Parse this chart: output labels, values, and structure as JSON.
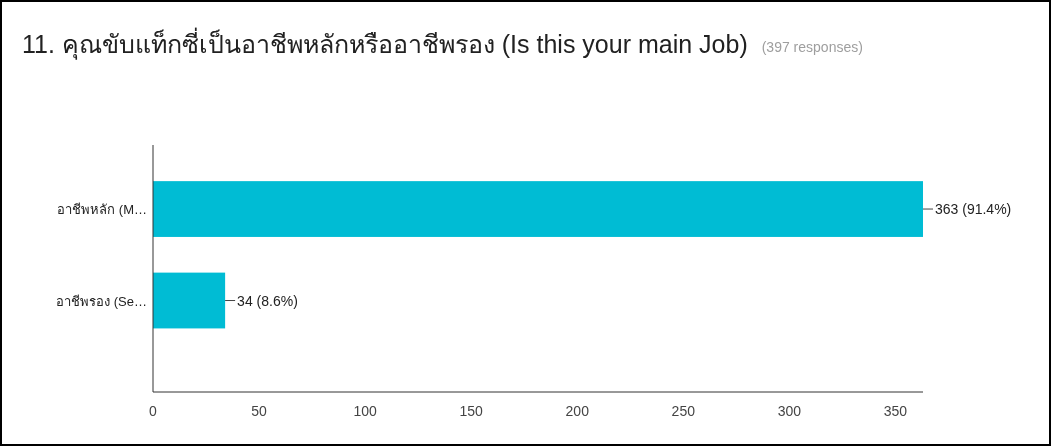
{
  "chart_data": {
    "type": "bar",
    "orientation": "horizontal",
    "title": "11. คุณขับแท็กซี่เป็นอาชีพหลักหรืออาชีพรอง (Is this your main Job)",
    "annotations": [
      "(397 responses)"
    ],
    "categories": [
      "อาชีพหลัก (M…",
      "อาชีพรอง (Se…"
    ],
    "values": [
      363,
      34
    ],
    "value_labels": [
      "363 (91.4%)",
      "34 (8.6%)"
    ],
    "color": "#00bcd4",
    "xlim": [
      0,
      363
    ],
    "xticks": [
      0,
      50,
      100,
      150,
      200,
      250,
      300,
      350
    ],
    "grid": false
  }
}
